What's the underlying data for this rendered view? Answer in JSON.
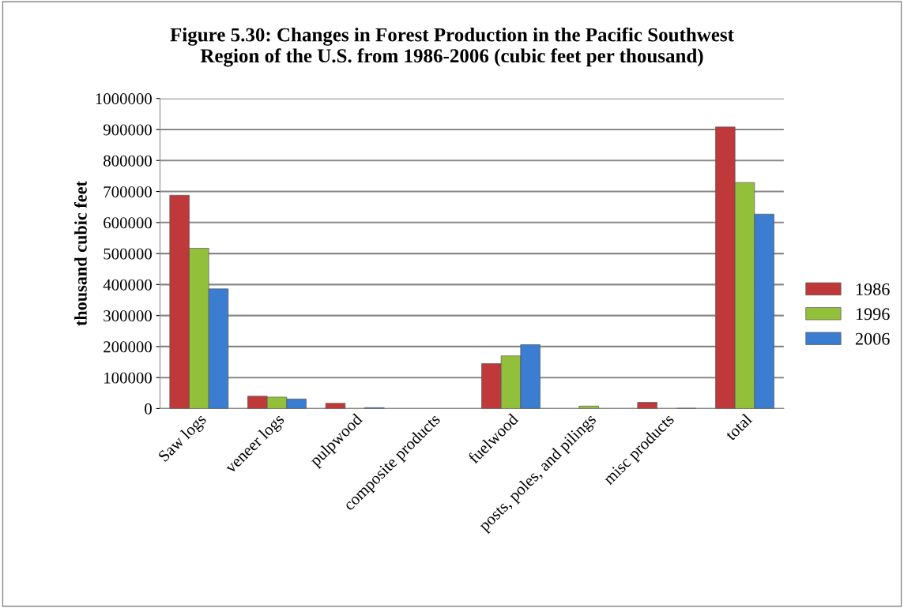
{
  "chart_data": {
    "type": "bar",
    "title": "Figure 5.30: Changes in Forest Production in the Pacific Southwest\nRegion of the U.S. from 1986-2006 (cubic feet per thousand)",
    "ylabel": "thousand cubic feet",
    "categories": [
      "Saw logs",
      "veneer logs",
      "pulpwood",
      "composite products",
      "fuelwood",
      "posts, poles, and pilings",
      "misc products",
      "total"
    ],
    "series": [
      {
        "name": "1986",
        "color": "#c0393a",
        "values": [
          688000,
          40000,
          17000,
          null,
          145000,
          null,
          20000,
          908000
        ]
      },
      {
        "name": "1996",
        "color": "#93c03a",
        "values": [
          517000,
          37000,
          null,
          null,
          170000,
          8000,
          null,
          729000
        ]
      },
      {
        "name": "2006",
        "color": "#3b7dd0",
        "values": [
          386000,
          31000,
          3000,
          null,
          206000,
          null,
          1000,
          627000
        ]
      }
    ],
    "ylim": [
      0,
      1000000
    ],
    "yticks": [
      0,
      100000,
      200000,
      300000,
      400000,
      500000,
      600000,
      700000,
      800000,
      900000,
      1000000
    ],
    "grid": "y",
    "legend": "right"
  }
}
